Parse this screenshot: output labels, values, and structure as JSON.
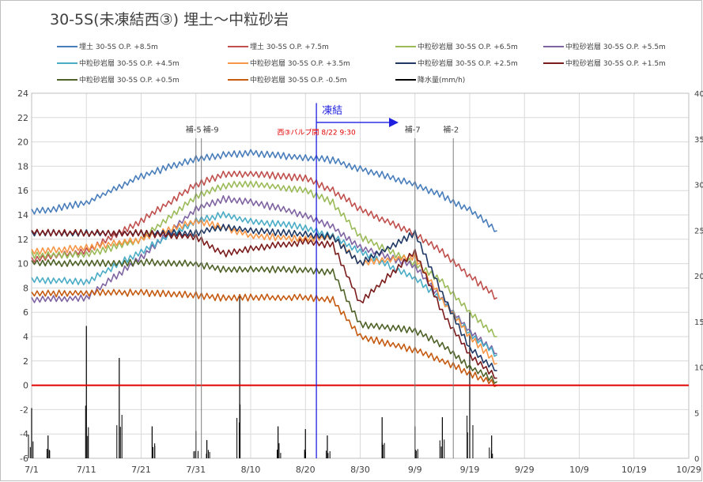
{
  "chart_data": {
    "type": "line",
    "title": "30-5S(未凍結西③)  埋土～中粒砂岩",
    "x_dates": [
      "7/1",
      "7/11",
      "7/21",
      "7/31",
      "8/10",
      "8/20",
      "8/30",
      "9/9",
      "9/19",
      "9/29",
      "10/9",
      "10/19",
      "10/29"
    ],
    "xlim": [
      "7/1",
      "10/29"
    ],
    "ylim": [
      -6,
      24
    ],
    "yticks": [
      -6,
      -4,
      -2,
      0,
      2,
      4,
      6,
      8,
      10,
      12,
      14,
      16,
      18,
      20,
      22,
      24
    ],
    "y2lim": [
      0,
      40
    ],
    "y2ticks": [
      "0",
      "5",
      "10",
      "15",
      "20",
      "25",
      "30",
      "35",
      "40"
    ],
    "grid": true,
    "legend_position": "top",
    "zero_line_color": "#e00000",
    "series": [
      {
        "name": "埋土 30-5S O.P. +8.5m",
        "color": "#4a7ebb",
        "x": [
          "7/1",
          "7/11",
          "7/21",
          "7/31",
          "8/5",
          "8/10",
          "8/20",
          "8/25",
          "8/30",
          "9/9",
          "9/14",
          "9/19",
          "9/24"
        ],
        "values": [
          14.2,
          15.0,
          17.2,
          18.6,
          18.9,
          19.1,
          18.7,
          18.5,
          17.8,
          16.5,
          15.6,
          14.4,
          12.7
        ]
      },
      {
        "name": "埋土 30-5S O.P. +7.5m",
        "color": "#c0504d",
        "x": [
          "7/1",
          "7/11",
          "7/21",
          "7/31",
          "8/5",
          "8/10",
          "8/20",
          "8/25",
          "8/30",
          "9/9",
          "9/14",
          "9/19",
          "9/24"
        ],
        "values": [
          10.3,
          11.0,
          13.5,
          16.5,
          17.3,
          17.4,
          17.0,
          16.0,
          14.5,
          12.4,
          11.0,
          9.0,
          7.2
        ]
      },
      {
        "name": "中粒砂岩層 30-5S O.P. +6.5m",
        "color": "#9bbb59",
        "x": [
          "7/1",
          "7/11",
          "7/21",
          "7/31",
          "8/5",
          "8/10",
          "8/20",
          "8/25",
          "8/30",
          "9/9",
          "9/14",
          "9/19",
          "9/24"
        ],
        "values": [
          10.7,
          10.7,
          12.0,
          15.5,
          16.4,
          16.6,
          16.0,
          15.0,
          12.2,
          10.0,
          8.5,
          6.0,
          4.0
        ]
      },
      {
        "name": "中粒砂岩層 30-5S O.P. +5.5m",
        "color": "#8064a2",
        "x": [
          "7/1",
          "7/11",
          "7/21",
          "7/31",
          "8/5",
          "8/10",
          "8/20",
          "8/25",
          "8/30",
          "9/9",
          "9/14",
          "9/19",
          "9/24"
        ],
        "values": [
          7.0,
          7.2,
          10.5,
          14.5,
          15.3,
          15.1,
          14.0,
          13.0,
          11.3,
          9.8,
          7.0,
          4.5,
          2.6
        ]
      },
      {
        "name": "中粒砂岩層 30-5S O.P. +4.5m",
        "color": "#4bacc6",
        "x": [
          "7/1",
          "7/11",
          "7/21",
          "7/31",
          "8/5",
          "8/10",
          "8/20",
          "8/25",
          "8/30",
          "9/9",
          "9/14",
          "9/19",
          "9/24"
        ],
        "values": [
          8.7,
          8.5,
          11.0,
          13.5,
          14.0,
          13.5,
          13.0,
          12.2,
          11.0,
          8.8,
          7.0,
          4.2,
          2.5
        ]
      },
      {
        "name": "中粒砂岩層 30-5S O.P. +3.5m",
        "color": "#f79646",
        "x": [
          "7/1",
          "7/11",
          "7/21",
          "7/31",
          "8/5",
          "8/10",
          "8/20",
          "8/25",
          "8/30",
          "9/9",
          "9/14",
          "9/19",
          "9/24"
        ],
        "values": [
          11.0,
          11.3,
          12.0,
          13.5,
          13.0,
          12.3,
          12.0,
          12.2,
          10.0,
          10.6,
          7.0,
          4.0,
          1.8
        ]
      },
      {
        "name": "中粒砂岩層 30-5S O.P. +2.5m",
        "color": "#1f3864",
        "x": [
          "7/1",
          "7/11",
          "7/21",
          "7/31",
          "8/5",
          "8/10",
          "8/20",
          "8/25",
          "8/30",
          "9/9",
          "9/14",
          "9/19",
          "9/24"
        ],
        "values": [
          12.5,
          12.5,
          12.5,
          12.5,
          13.0,
          12.7,
          12.4,
          12.2,
          10.0,
          12.5,
          7.5,
          3.0,
          1.2
        ]
      },
      {
        "name": "中粒砂岩層 30-5S O.P. +1.5m",
        "color": "#7b1c1c",
        "x": [
          "7/1",
          "7/11",
          "7/21",
          "7/31",
          "8/5",
          "8/10",
          "8/20",
          "8/25",
          "8/30",
          "9/9",
          "9/14",
          "9/19",
          "9/24"
        ],
        "values": [
          12.6,
          12.5,
          12.5,
          12.2,
          10.8,
          11.2,
          11.8,
          11.5,
          6.8,
          11.0,
          6.0,
          2.5,
          0.6
        ]
      },
      {
        "name": "中粒砂岩層 30-5S O.P. +0.5m",
        "color": "#4f6228",
        "x": [
          "7/1",
          "7/11",
          "7/21",
          "7/31",
          "8/5",
          "8/10",
          "8/20",
          "8/25",
          "8/30",
          "9/9",
          "9/14",
          "9/19",
          "9/24"
        ],
        "values": [
          10.1,
          10.0,
          10.1,
          10.0,
          9.5,
          9.5,
          9.5,
          9.3,
          5.0,
          4.5,
          3.3,
          1.5,
          0.3
        ]
      },
      {
        "name": "中粒砂岩層 30-5S O.P. -0.5m",
        "color": "#c55a11",
        "x": [
          "7/1",
          "7/11",
          "7/21",
          "7/31",
          "8/5",
          "8/10",
          "8/20",
          "8/25",
          "8/30",
          "9/9",
          "9/14",
          "9/19",
          "9/24"
        ],
        "values": [
          7.5,
          7.6,
          7.6,
          7.4,
          7.2,
          7.2,
          7.2,
          7.0,
          4.0,
          2.9,
          2.0,
          1.0,
          0.0
        ]
      },
      {
        "name": "降水量(mm/h)",
        "color": "#000000",
        "axis": "right",
        "x": [
          "7/1",
          "7/4",
          "7/11",
          "7/17",
          "7/23",
          "7/31",
          "8/2",
          "8/8",
          "8/15",
          "8/20",
          "8/24",
          "9/3",
          "9/9",
          "9/14",
          "9/19",
          "9/23"
        ],
        "values": [
          5.5,
          2.5,
          14.5,
          11,
          3.5,
          3,
          2,
          18,
          3.5,
          3.2,
          2.5,
          4.5,
          3.5,
          4.5,
          16,
          2.5
        ]
      }
    ],
    "vlines": [
      {
        "label": "補-5",
        "x": "7/31"
      },
      {
        "label": "補-9",
        "x": "8/1"
      },
      {
        "label": "補-7",
        "x": "9/9"
      },
      {
        "label": "補-2",
        "x": "9/16"
      }
    ],
    "freeze": {
      "label": "凍結",
      "x": "8/22",
      "x_end": "9/6",
      "color": "#1f1fe0"
    },
    "valve_note": {
      "text": "西③バルブ開 8/22 9:30",
      "color": "#e00000"
    }
  }
}
